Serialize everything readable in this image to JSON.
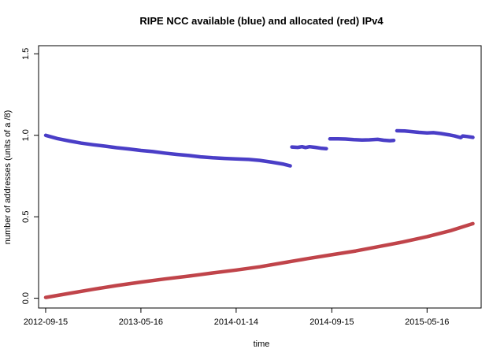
{
  "chart_data": {
    "type": "line",
    "title": "RIPE NCC available (blue) and allocated (red) IPv4",
    "xlabel": "time",
    "ylabel": "number of addresses (units of a /8)",
    "x_type": "date",
    "xlim": [
      "2012-08-28",
      "2015-10-01"
    ],
    "ylim": [
      -0.06,
      1.55
    ],
    "x_ticks": [
      "2012-09-15",
      "2013-05-16",
      "2014-01-14",
      "2014-09-15",
      "2015-05-16"
    ],
    "y_ticks": [
      0.0,
      0.5,
      1.0,
      1.5
    ],
    "y_tick_labels": [
      "0.0",
      "0.5",
      "1.0",
      "1.5"
    ],
    "grid": false,
    "series": [
      {
        "color": "#4a3ec7",
        "segments": [
          [
            [
              "2012-09-15",
              1.0
            ],
            [
              "2012-10-15",
              0.98
            ],
            [
              "2012-11-15",
              0.965
            ],
            [
              "2012-12-15",
              0.952
            ],
            [
              "2013-01-15",
              0.942
            ],
            [
              "2013-02-15",
              0.933
            ],
            [
              "2013-03-15",
              0.924
            ],
            [
              "2013-04-15",
              0.916
            ],
            [
              "2013-05-16",
              0.907
            ],
            [
              "2013-06-15",
              0.9
            ],
            [
              "2013-07-15",
              0.891
            ],
            [
              "2013-08-15",
              0.883
            ],
            [
              "2013-09-15",
              0.876
            ],
            [
              "2013-10-15",
              0.868
            ],
            [
              "2013-11-15",
              0.862
            ],
            [
              "2013-12-15",
              0.858
            ],
            [
              "2014-01-14",
              0.855
            ],
            [
              "2014-02-15",
              0.852
            ],
            [
              "2014-03-15",
              0.846
            ],
            [
              "2014-04-15",
              0.835
            ],
            [
              "2014-05-15",
              0.823
            ],
            [
              "2014-06-01",
              0.812
            ]
          ],
          [
            [
              "2014-06-05",
              0.928
            ],
            [
              "2014-06-20",
              0.926
            ],
            [
              "2014-07-01",
              0.93
            ],
            [
              "2014-07-10",
              0.925
            ],
            [
              "2014-07-20",
              0.93
            ],
            [
              "2014-08-05",
              0.926
            ],
            [
              "2014-08-20",
              0.92
            ],
            [
              "2014-09-01",
              0.918
            ]
          ],
          [
            [
              "2014-09-10",
              0.978
            ],
            [
              "2014-10-01",
              0.978
            ],
            [
              "2014-10-20",
              0.977
            ],
            [
              "2014-11-10",
              0.973
            ],
            [
              "2014-12-01",
              0.971
            ],
            [
              "2014-12-20",
              0.972
            ],
            [
              "2015-01-10",
              0.975
            ],
            [
              "2015-01-25",
              0.97
            ],
            [
              "2015-02-10",
              0.967
            ],
            [
              "2015-02-20",
              0.969
            ]
          ],
          [
            [
              "2015-02-28",
              1.028
            ],
            [
              "2015-03-20",
              1.027
            ],
            [
              "2015-04-10",
              1.022
            ],
            [
              "2015-04-25",
              1.018
            ],
            [
              "2015-05-16",
              1.015
            ],
            [
              "2015-06-01",
              1.016
            ],
            [
              "2015-06-20",
              1.011
            ],
            [
              "2015-07-10",
              1.003
            ],
            [
              "2015-07-25",
              0.996
            ],
            [
              "2015-08-10",
              0.986
            ],
            [
              "2015-08-15",
              0.996
            ],
            [
              "2015-08-25",
              0.993
            ],
            [
              "2015-09-10",
              0.987
            ]
          ]
        ]
      },
      {
        "color": "#c0444a",
        "segments": [
          [
            [
              "2012-09-15",
              0.005
            ],
            [
              "2012-11-15",
              0.03
            ],
            [
              "2013-01-15",
              0.055
            ],
            [
              "2013-03-15",
              0.078
            ],
            [
              "2013-05-16",
              0.099
            ],
            [
              "2013-07-15",
              0.118
            ],
            [
              "2013-09-15",
              0.136
            ],
            [
              "2013-11-15",
              0.155
            ],
            [
              "2014-01-14",
              0.173
            ],
            [
              "2014-03-15",
              0.193
            ],
            [
              "2014-05-15",
              0.218
            ],
            [
              "2014-07-15",
              0.243
            ],
            [
              "2014-09-15",
              0.267
            ],
            [
              "2014-11-15",
              0.29
            ],
            [
              "2015-01-15",
              0.318
            ],
            [
              "2015-03-15",
              0.345
            ],
            [
              "2015-05-16",
              0.378
            ],
            [
              "2015-07-15",
              0.415
            ],
            [
              "2015-09-10",
              0.458
            ]
          ]
        ]
      }
    ]
  }
}
